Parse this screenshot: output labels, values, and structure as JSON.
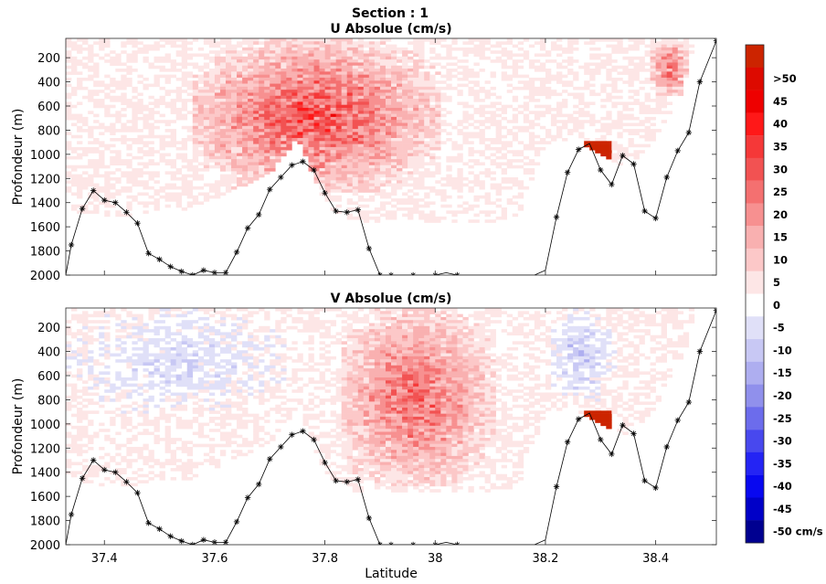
{
  "figure": {
    "suptitle": "Section : 1"
  },
  "chart_data": [
    {
      "type": "heatmap",
      "title": "U Absolue (cm/s)",
      "xlabel": "",
      "ylabel": "Profondeur (m)",
      "xlim": [
        37.33,
        38.51
      ],
      "ylim": [
        2000,
        40
      ],
      "y_reversed": true,
      "xticks": [
        37.4,
        37.6,
        37.8,
        38,
        38.2,
        38.4
      ],
      "yticks": [
        200,
        400,
        600,
        800,
        1000,
        1200,
        1400,
        1600,
        1800,
        2000
      ],
      "grid": false,
      "value_units": "cm/s",
      "data_extent": [
        {
          "lat": 37.33,
          "max_depth": 1450
        },
        {
          "lat": 37.4,
          "max_depth": 1500
        },
        {
          "lat": 37.45,
          "max_depth": 1500
        },
        {
          "lat": 37.5,
          "max_depth": 1450
        },
        {
          "lat": 37.55,
          "max_depth": 1450
        },
        {
          "lat": 37.6,
          "max_depth": 1350
        },
        {
          "lat": 37.65,
          "max_depth": 1250
        },
        {
          "lat": 37.7,
          "max_depth": 1150
        },
        {
          "lat": 37.75,
          "max_depth": 850
        },
        {
          "lat": 37.8,
          "max_depth": 1400
        },
        {
          "lat": 37.85,
          "max_depth": 1550
        },
        {
          "lat": 37.9,
          "max_depth": 1550
        },
        {
          "lat": 37.95,
          "max_depth": 1550
        },
        {
          "lat": 38.0,
          "max_depth": 1550
        },
        {
          "lat": 38.05,
          "max_depth": 1550
        },
        {
          "lat": 38.1,
          "max_depth": 1550
        },
        {
          "lat": 38.15,
          "max_depth": 1500
        },
        {
          "lat": 38.2,
          "max_depth": 900
        },
        {
          "lat": 38.25,
          "max_depth": 850
        },
        {
          "lat": 38.3,
          "max_depth": 1000
        },
        {
          "lat": 38.35,
          "max_depth": 1100
        },
        {
          "lat": 38.4,
          "max_depth": 850
        },
        {
          "lat": 38.45,
          "max_depth": 450
        },
        {
          "lat": 38.47,
          "max_depth": 60
        }
      ],
      "features": [
        {
          "name": "strong positive core",
          "lat": [
            37.55,
            38.0
          ],
          "depth": [
            40,
            1300
          ],
          "value": 30
        },
        {
          "name": "positive near surface north",
          "lat": [
            38.38,
            38.46
          ],
          "depth": [
            40,
            500
          ],
          "value": 25
        },
        {
          "name": "strong positive patch",
          "lat": [
            38.26,
            38.31
          ],
          "depth": [
            870,
            1050
          ],
          "value": 50
        },
        {
          "name": "weak mixed",
          "lat": [
            37.33,
            38.47
          ],
          "depth": [
            40,
            1550
          ],
          "value": 0
        }
      ],
      "bathymetry": {
        "lat": [
          37.33,
          37.34,
          37.36,
          37.38,
          37.4,
          37.42,
          37.44,
          37.46,
          37.48,
          37.5,
          37.52,
          37.54,
          37.56,
          37.58,
          37.6,
          37.62,
          37.64,
          37.66,
          37.68,
          37.7,
          37.72,
          37.74,
          37.76,
          37.78,
          37.8,
          37.82,
          37.84,
          37.86,
          37.88,
          37.9,
          37.92,
          37.94,
          37.96,
          37.98,
          38.0,
          38.02,
          38.04,
          38.06,
          38.08,
          38.1,
          38.12,
          38.14,
          38.16,
          38.18,
          38.2,
          38.22,
          38.24,
          38.26,
          38.28,
          38.3,
          38.32,
          38.34,
          38.36,
          38.38,
          38.4,
          38.42,
          38.44,
          38.46,
          38.48,
          38.51
        ],
        "depth": [
          2000,
          1750,
          1450,
          1300,
          1380,
          1400,
          1480,
          1570,
          1820,
          1870,
          1930,
          1970,
          2000,
          1960,
          1980,
          1980,
          1810,
          1610,
          1500,
          1290,
          1190,
          1090,
          1060,
          1130,
          1320,
          1470,
          1480,
          1460,
          1780,
          2000,
          2000,
          2000,
          2000,
          2000,
          2000,
          1980,
          2000,
          2000,
          2000,
          2000,
          2000,
          2000,
          2000,
          2000,
          1960,
          1520,
          1150,
          960,
          910,
          1130,
          1250,
          1010,
          1080,
          1470,
          1530,
          1190,
          970,
          820,
          400,
          60
        ]
      },
      "bathymetry_markers_lat": [
        37.34,
        37.36,
        37.38,
        37.4,
        37.42,
        37.44,
        37.46,
        37.48,
        37.5,
        37.52,
        37.54,
        37.56,
        37.58,
        37.6,
        37.62,
        37.64,
        37.66,
        37.68,
        37.7,
        37.72,
        37.74,
        37.76,
        37.78,
        37.8,
        37.82,
        37.84,
        37.86,
        37.88,
        37.9,
        37.92,
        37.96,
        38.0,
        38.04,
        38.22,
        38.24,
        38.26,
        38.3,
        38.32,
        38.34,
        38.36,
        38.38,
        38.4,
        38.42,
        38.44,
        38.46,
        38.48,
        38.51
      ]
    },
    {
      "type": "heatmap",
      "title": "V Absolue (cm/s)",
      "xlabel": "Latitude",
      "ylabel": "Profondeur (m)",
      "xlim": [
        37.33,
        38.51
      ],
      "ylim": [
        2000,
        40
      ],
      "y_reversed": true,
      "xticks": [
        37.4,
        37.6,
        37.8,
        38,
        38.2,
        38.4
      ],
      "yticks": [
        200,
        400,
        600,
        800,
        1000,
        1200,
        1400,
        1600,
        1800,
        2000
      ],
      "grid": false,
      "value_units": "cm/s",
      "data_extent": [
        {
          "lat": 37.33,
          "max_depth": 1450
        },
        {
          "lat": 37.4,
          "max_depth": 1500
        },
        {
          "lat": 37.45,
          "max_depth": 1500
        },
        {
          "lat": 37.5,
          "max_depth": 1450
        },
        {
          "lat": 37.55,
          "max_depth": 1450
        },
        {
          "lat": 37.6,
          "max_depth": 1350
        },
        {
          "lat": 37.65,
          "max_depth": 1250
        },
        {
          "lat": 37.7,
          "max_depth": 1150
        },
        {
          "lat": 37.75,
          "max_depth": 850
        },
        {
          "lat": 37.8,
          "max_depth": 1400
        },
        {
          "lat": 37.85,
          "max_depth": 1550
        },
        {
          "lat": 37.9,
          "max_depth": 1550
        },
        {
          "lat": 37.95,
          "max_depth": 1550
        },
        {
          "lat": 38.0,
          "max_depth": 1550
        },
        {
          "lat": 38.05,
          "max_depth": 1550
        },
        {
          "lat": 38.1,
          "max_depth": 1550
        },
        {
          "lat": 38.15,
          "max_depth": 1500
        },
        {
          "lat": 38.2,
          "max_depth": 900
        },
        {
          "lat": 38.25,
          "max_depth": 850
        },
        {
          "lat": 38.3,
          "max_depth": 1000
        },
        {
          "lat": 38.35,
          "max_depth": 1100
        },
        {
          "lat": 38.4,
          "max_depth": 850
        },
        {
          "lat": 38.45,
          "max_depth": 450
        },
        {
          "lat": 38.47,
          "max_depth": 60
        }
      ],
      "features": [
        {
          "name": "positive core",
          "lat": [
            37.82,
            38.1
          ],
          "depth": [
            40,
            1500
          ],
          "value": 25
        },
        {
          "name": "weak negative south",
          "lat": [
            37.33,
            37.72
          ],
          "depth": [
            40,
            900
          ],
          "value": -8
        },
        {
          "name": "negative north",
          "lat": [
            38.2,
            38.32
          ],
          "depth": [
            40,
            800
          ],
          "value": -12
        },
        {
          "name": "strong positive patch",
          "lat": [
            38.26,
            38.31
          ],
          "depth": [
            870,
            1050
          ],
          "value": 50
        }
      ],
      "bathymetry": {
        "lat": [
          37.33,
          37.34,
          37.36,
          37.38,
          37.4,
          37.42,
          37.44,
          37.46,
          37.48,
          37.5,
          37.52,
          37.54,
          37.56,
          37.58,
          37.6,
          37.62,
          37.64,
          37.66,
          37.68,
          37.7,
          37.72,
          37.74,
          37.76,
          37.78,
          37.8,
          37.82,
          37.84,
          37.86,
          37.88,
          37.9,
          37.92,
          37.94,
          37.96,
          37.98,
          38.0,
          38.02,
          38.04,
          38.06,
          38.08,
          38.1,
          38.12,
          38.14,
          38.16,
          38.18,
          38.2,
          38.22,
          38.24,
          38.26,
          38.28,
          38.3,
          38.32,
          38.34,
          38.36,
          38.38,
          38.4,
          38.42,
          38.44,
          38.46,
          38.48,
          38.51
        ],
        "depth": [
          2000,
          1750,
          1450,
          1300,
          1380,
          1400,
          1480,
          1570,
          1820,
          1870,
          1930,
          1970,
          2000,
          1960,
          1980,
          1980,
          1810,
          1610,
          1500,
          1290,
          1190,
          1090,
          1060,
          1130,
          1320,
          1470,
          1480,
          1460,
          1780,
          2000,
          2000,
          2000,
          2000,
          2000,
          2000,
          1980,
          2000,
          2000,
          2000,
          2000,
          2000,
          2000,
          2000,
          2000,
          1960,
          1520,
          1150,
          960,
          910,
          1130,
          1250,
          1010,
          1080,
          1470,
          1530,
          1190,
          970,
          820,
          400,
          60
        ]
      },
      "bathymetry_markers_lat": [
        37.34,
        37.36,
        37.38,
        37.4,
        37.42,
        37.44,
        37.46,
        37.48,
        37.5,
        37.52,
        37.54,
        37.56,
        37.58,
        37.6,
        37.62,
        37.64,
        37.66,
        37.68,
        37.7,
        37.72,
        37.74,
        37.76,
        37.78,
        37.8,
        37.82,
        37.84,
        37.86,
        37.88,
        37.9,
        37.92,
        37.96,
        38.0,
        38.04,
        38.22,
        38.24,
        38.26,
        38.3,
        38.32,
        38.34,
        38.36,
        38.38,
        38.4,
        38.42,
        38.44,
        38.46,
        38.48,
        38.51
      ]
    }
  ],
  "colorbar": {
    "min": -55,
    "max": 55,
    "bins": [
      {
        "value": 52.5,
        "color": "#cc2400",
        "label": ""
      },
      {
        "value": 47.5,
        "color": "#dd0a00",
        "label": ">50"
      },
      {
        "value": 42.5,
        "color": "#ee0000",
        "label": "45"
      },
      {
        "value": 37.5,
        "color": "#ff1818",
        "label": "40"
      },
      {
        "value": 32.5,
        "color": "#f53838",
        "label": "35"
      },
      {
        "value": 27.5,
        "color": "#f25252",
        "label": "30"
      },
      {
        "value": 22.5,
        "color": "#f47070",
        "label": "25"
      },
      {
        "value": 17.5,
        "color": "#f79090",
        "label": "20"
      },
      {
        "value": 12.5,
        "color": "#f9b0b0",
        "label": "15"
      },
      {
        "value": 7.5,
        "color": "#fcc8c8",
        "label": "10"
      },
      {
        "value": 2.5,
        "color": "#fde6e6",
        "label": "5"
      },
      {
        "value": -2.5,
        "color": "#ffffff",
        "label": "0"
      },
      {
        "value": -7.5,
        "color": "#e0e0f8",
        "label": "-5"
      },
      {
        "value": -12.5,
        "color": "#c8c8f4",
        "label": "-10"
      },
      {
        "value": -17.5,
        "color": "#aeaef0",
        "label": "-15"
      },
      {
        "value": -22.5,
        "color": "#9090ec",
        "label": "-20"
      },
      {
        "value": -27.5,
        "color": "#6c6cec",
        "label": "-25"
      },
      {
        "value": -32.5,
        "color": "#4848ee",
        "label": "-30"
      },
      {
        "value": -37.5,
        "color": "#2424f4",
        "label": "-35"
      },
      {
        "value": -42.5,
        "color": "#0808f0",
        "label": "-40"
      },
      {
        "value": -47.5,
        "color": "#0000c8",
        "label": "-45"
      },
      {
        "value": -52.5,
        "color": "#000090",
        "label": "-50 cm/s"
      }
    ]
  }
}
